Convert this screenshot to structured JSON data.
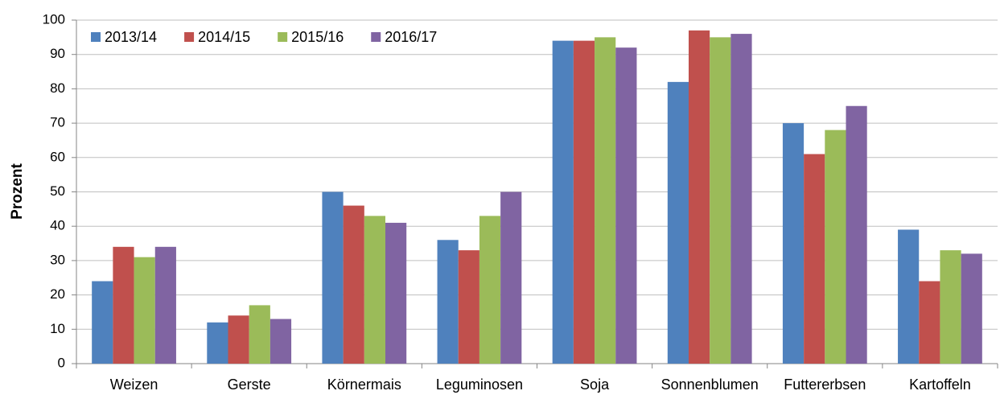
{
  "chart_data": {
    "type": "bar",
    "y_label": "Prozent",
    "categories": [
      "Weizen",
      "Gerste",
      "Körnermais",
      "Leguminosen",
      "Soja",
      "Sonnenblumen",
      "Futtererbsen",
      "Kartoffeln"
    ],
    "series": [
      {
        "name": "2013/14",
        "color": "#4f81bd",
        "values": [
          24,
          12,
          50,
          36,
          94,
          82,
          70,
          39
        ]
      },
      {
        "name": "2014/15",
        "color": "#c0504d",
        "values": [
          34,
          14,
          46,
          33,
          94,
          97,
          61,
          24
        ]
      },
      {
        "name": "2015/16",
        "color": "#9bbb59",
        "values": [
          31,
          17,
          43,
          43,
          95,
          95,
          68,
          33
        ]
      },
      {
        "name": "2016/17",
        "color": "#8064a2",
        "values": [
          34,
          13,
          41,
          50,
          92,
          96,
          75,
          32
        ]
      }
    ],
    "ylim": [
      0,
      100
    ],
    "yticks": [
      0,
      10,
      20,
      30,
      40,
      50,
      60,
      70,
      80,
      90,
      100
    ],
    "grid": true,
    "legend": "top-left"
  }
}
